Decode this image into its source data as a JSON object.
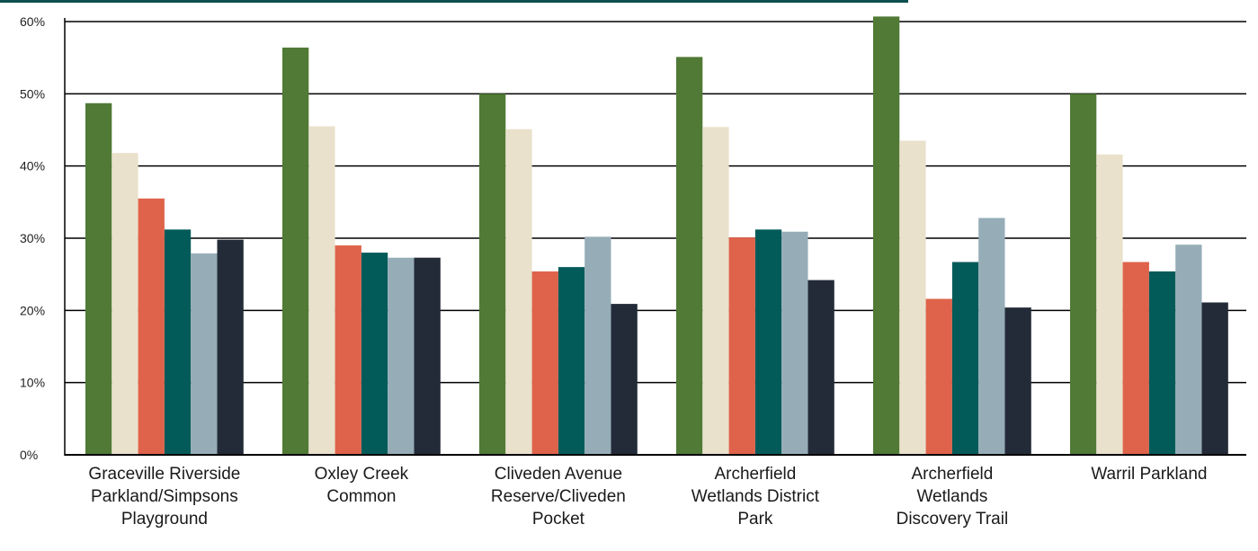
{
  "chart_data": {
    "type": "bar",
    "title": "",
    "xlabel": "",
    "ylabel": "",
    "ylim": [
      0,
      60
    ],
    "yticks": [
      "0%",
      "10%",
      "20%",
      "30%",
      "40%",
      "50%",
      "60%"
    ],
    "ytick_values": [
      0,
      10,
      20,
      30,
      40,
      50,
      60
    ],
    "grid": true,
    "legend": false,
    "categories": [
      [
        "Graceville Riverside",
        "Parkland/Simpsons",
        "Playground"
      ],
      [
        "Oxley Creek",
        "Common"
      ],
      [
        "Cliveden Avenue",
        "Reserve/Cliveden",
        "Pocket"
      ],
      [
        "Archerfield",
        "Wetlands District",
        "Park"
      ],
      [
        "Archerfield",
        "Wetlands",
        "Discovery Trail"
      ],
      [
        "Warril Parkland"
      ]
    ],
    "series": [
      {
        "color": "#507a35",
        "values": [
          48.7,
          56.4,
          50.0,
          55.1,
          60.7,
          50.0
        ]
      },
      {
        "color": "#e9e1cb",
        "values": [
          41.8,
          45.5,
          45.1,
          45.4,
          43.5,
          41.6
        ]
      },
      {
        "color": "#df634a",
        "values": [
          35.5,
          29.0,
          25.4,
          30.1,
          21.6,
          26.7
        ]
      },
      {
        "color": "#025b59",
        "values": [
          31.2,
          28.0,
          26.0,
          31.2,
          26.7,
          25.4
        ]
      },
      {
        "color": "#96adb8",
        "values": [
          27.9,
          27.3,
          30.2,
          30.9,
          32.8,
          29.1
        ]
      },
      {
        "color": "#242b38",
        "values": [
          29.8,
          27.3,
          20.9,
          24.2,
          20.4,
          21.1
        ]
      }
    ],
    "colors": {
      "axis": "#000000",
      "gridline": "#000000",
      "top_accent": "#0d4f4e"
    }
  }
}
